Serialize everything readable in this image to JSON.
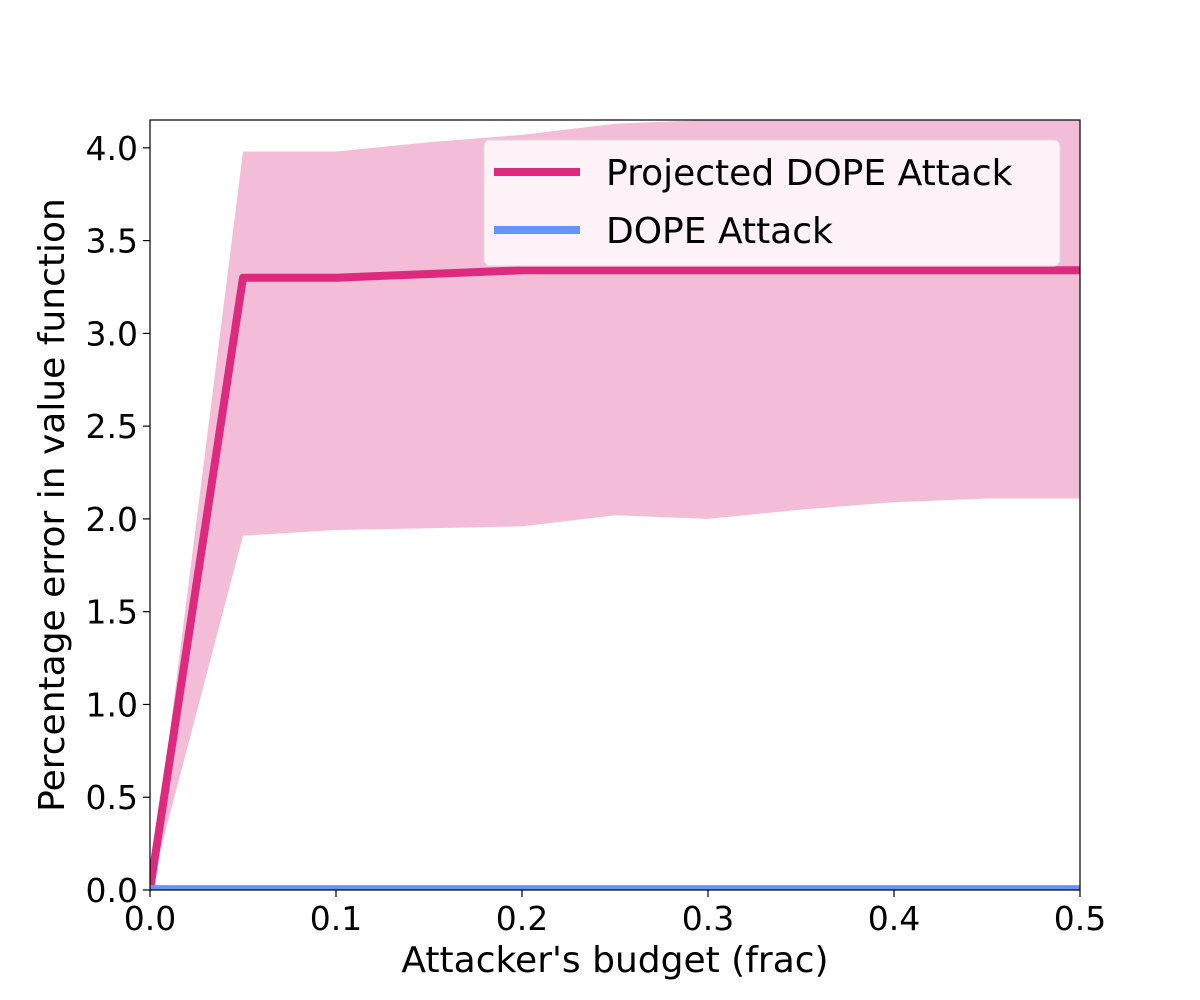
{
  "chart_data": {
    "type": "line",
    "title": "",
    "xlabel": "Attacker's budget (frac)",
    "ylabel": "Percentage error in value function",
    "xlim": [
      0.0,
      0.5
    ],
    "ylim": [
      0.0,
      4.15
    ],
    "xticks": [
      "0.0",
      "0.1",
      "0.2",
      "0.3",
      "0.4",
      "0.5"
    ],
    "yticks": [
      "0.0",
      "0.5",
      "1.0",
      "1.5",
      "2.0",
      "2.5",
      "3.0",
      "3.5",
      "4.0"
    ],
    "grid": false,
    "legend_position": "top-right",
    "x": [
      0.0,
      0.05,
      0.1,
      0.15,
      0.2,
      0.25,
      0.3,
      0.35,
      0.4,
      0.45,
      0.5
    ],
    "series": [
      {
        "name": "Projected DOPE Attack",
        "color": "#dd2a7f",
        "band_color": "#f3bcd7",
        "values": [
          0.0,
          3.3,
          3.3,
          3.32,
          3.34,
          3.34,
          3.34,
          3.34,
          3.34,
          3.34,
          3.34
        ],
        "band_lower": [
          0.0,
          1.91,
          1.94,
          1.95,
          1.96,
          2.02,
          2.0,
          2.05,
          2.09,
          2.11,
          2.11
        ],
        "band_upper": [
          0.0,
          3.98,
          3.98,
          4.03,
          4.07,
          4.13,
          4.15,
          4.15,
          4.15,
          4.15,
          4.15
        ]
      },
      {
        "name": "DOPE Attack",
        "color": "#6495ff",
        "values": [
          0.005,
          0.005,
          0.005,
          0.005,
          0.005,
          0.005,
          0.005,
          0.005,
          0.005,
          0.005,
          0.005
        ]
      }
    ]
  }
}
